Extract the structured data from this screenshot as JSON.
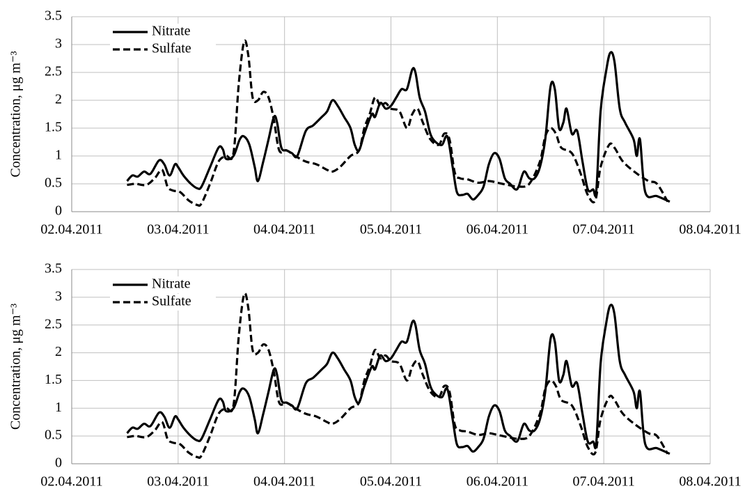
{
  "chart_data": [
    {
      "type": "line",
      "ylabel": "Concentration, μg m⁻³",
      "xlim": [
        0,
        6
      ],
      "xticks": [
        {
          "value": 0,
          "label": "02.04.2011"
        },
        {
          "value": 1,
          "label": "03.04.2011"
        },
        {
          "value": 2,
          "label": "04.04.2011"
        },
        {
          "value": 3,
          "label": "05.04.2011"
        },
        {
          "value": 4,
          "label": "06.04.2011"
        },
        {
          "value": 5,
          "label": "07.04.2011"
        },
        {
          "value": 6,
          "label": "08.04.2011"
        }
      ],
      "ylim": [
        0,
        3.5
      ],
      "yticks": [
        0,
        0.5,
        1,
        1.5,
        2,
        2.5,
        3,
        3.5
      ],
      "grid": true,
      "legend": "upper left",
      "series": [
        {
          "name": "Nitrate",
          "color": "#000000",
          "dash": false,
          "x": [
            0.52,
            0.57,
            0.62,
            0.68,
            0.74,
            0.82,
            0.87,
            0.92,
            0.97,
            1.0,
            1.05,
            1.12,
            1.18,
            1.22,
            1.3,
            1.38,
            1.42,
            1.45,
            1.52,
            1.58,
            1.62,
            1.67,
            1.72,
            1.75,
            1.8,
            1.85,
            1.9,
            1.93,
            1.97,
            2.02,
            2.07,
            2.12,
            2.2,
            2.27,
            2.35,
            2.4,
            2.45,
            2.5,
            2.56,
            2.62,
            2.66,
            2.7,
            2.75,
            2.82,
            2.85,
            2.9,
            2.95,
            3.0,
            3.05,
            3.1,
            3.15,
            3.2,
            3.23,
            3.27,
            3.32,
            3.37,
            3.42,
            3.48,
            3.53,
            3.58,
            3.62,
            3.67,
            3.72,
            3.77,
            3.82,
            3.87,
            3.92,
            3.97,
            4.02,
            4.07,
            4.12,
            4.17,
            4.2,
            4.25,
            4.3,
            4.35,
            4.4,
            4.45,
            4.5,
            4.54,
            4.58,
            4.62,
            4.65,
            4.7,
            4.75,
            4.8,
            4.85,
            4.9,
            4.93,
            4.97,
            5.02,
            5.06,
            5.1,
            5.15,
            5.2,
            5.28,
            5.31,
            5.34,
            5.39,
            5.5,
            5.62
          ],
          "values": [
            0.55,
            0.65,
            0.63,
            0.72,
            0.68,
            0.92,
            0.85,
            0.65,
            0.85,
            0.8,
            0.65,
            0.5,
            0.42,
            0.45,
            0.8,
            1.15,
            1.12,
            0.95,
            1.0,
            1.3,
            1.35,
            1.2,
            0.8,
            0.55,
            0.9,
            1.3,
            1.7,
            1.6,
            1.15,
            1.1,
            1.05,
            1.0,
            1.45,
            1.55,
            1.7,
            1.8,
            2.0,
            1.9,
            1.7,
            1.5,
            1.2,
            1.1,
            1.4,
            1.75,
            1.7,
            1.95,
            1.85,
            1.9,
            2.05,
            2.2,
            2.2,
            2.55,
            2.5,
            2.05,
            1.8,
            1.4,
            1.25,
            1.2,
            1.35,
            0.8,
            0.35,
            0.3,
            0.32,
            0.22,
            0.3,
            0.45,
            0.85,
            1.05,
            0.95,
            0.6,
            0.5,
            0.4,
            0.45,
            0.72,
            0.6,
            0.6,
            0.8,
            1.3,
            2.25,
            2.2,
            1.5,
            1.6,
            1.85,
            1.4,
            1.45,
            0.9,
            0.4,
            0.4,
            0.38,
            1.8,
            2.5,
            2.85,
            2.7,
            1.85,
            1.6,
            1.3,
            1.0,
            1.3,
            0.35,
            0.28,
            0.18
          ]
        },
        {
          "name": "Sulfate",
          "color": "#000000",
          "dash": true,
          "x": [
            0.52,
            0.6,
            0.7,
            0.78,
            0.85,
            0.9,
            0.95,
            1.02,
            1.1,
            1.18,
            1.22,
            1.3,
            1.38,
            1.45,
            1.52,
            1.57,
            1.62,
            1.66,
            1.7,
            1.75,
            1.8,
            1.85,
            1.9,
            1.95,
            2.02,
            2.1,
            2.2,
            2.3,
            2.4,
            2.45,
            2.52,
            2.62,
            2.7,
            2.75,
            2.8,
            2.85,
            2.9,
            2.95,
            3.0,
            3.08,
            3.15,
            3.2,
            3.25,
            3.3,
            3.37,
            3.45,
            3.5,
            3.55,
            3.6,
            3.65,
            3.72,
            3.82,
            3.92,
            4.0,
            4.1,
            4.2,
            4.3,
            4.4,
            4.45,
            4.5,
            4.55,
            4.6,
            4.7,
            4.78,
            4.85,
            4.92,
            4.97,
            5.05,
            5.1,
            5.18,
            5.3,
            5.42,
            5.5,
            5.6
          ],
          "values": [
            0.48,
            0.5,
            0.48,
            0.6,
            0.75,
            0.45,
            0.38,
            0.35,
            0.2,
            0.12,
            0.15,
            0.5,
            0.9,
            1.0,
            1.05,
            2.3,
            3.05,
            2.8,
            2.05,
            2.0,
            2.15,
            2.05,
            1.65,
            1.1,
            1.1,
            1.0,
            0.9,
            0.85,
            0.75,
            0.72,
            0.8,
            1.0,
            1.1,
            1.5,
            1.75,
            2.05,
            1.9,
            1.95,
            1.85,
            1.8,
            1.5,
            1.75,
            1.85,
            1.6,
            1.3,
            1.2,
            1.4,
            1.3,
            0.7,
            0.6,
            0.58,
            0.52,
            0.55,
            0.52,
            0.48,
            0.45,
            0.5,
            0.9,
            1.35,
            1.5,
            1.4,
            1.15,
            1.05,
            0.7,
            0.3,
            0.2,
            0.8,
            1.2,
            1.15,
            0.9,
            0.7,
            0.55,
            0.5,
            0.18
          ]
        }
      ]
    },
    {
      "type": "line",
      "ylabel": "Concentration, μg m⁻³",
      "xlim": [
        0,
        6
      ],
      "xticks": [
        {
          "value": 0,
          "label": "02.04.2011"
        },
        {
          "value": 1,
          "label": "03.04.2011"
        },
        {
          "value": 2,
          "label": "04.04.2011"
        },
        {
          "value": 3,
          "label": "05.04.2011"
        },
        {
          "value": 4,
          "label": "06.04.2011"
        },
        {
          "value": 5,
          "label": "07.04.2011"
        },
        {
          "value": 6,
          "label": "08.04.2011"
        }
      ],
      "ylim": [
        0,
        3.5
      ],
      "yticks": [
        0,
        0.5,
        1,
        1.5,
        2,
        2.5,
        3,
        3.5
      ],
      "grid": true,
      "legend": "upper left",
      "series": [
        {
          "name": "Nitrate",
          "color": "#000000",
          "dash": false,
          "x": [
            0.52,
            0.57,
            0.62,
            0.68,
            0.74,
            0.82,
            0.87,
            0.92,
            0.97,
            1.0,
            1.05,
            1.12,
            1.18,
            1.22,
            1.3,
            1.38,
            1.42,
            1.45,
            1.52,
            1.58,
            1.62,
            1.67,
            1.72,
            1.75,
            1.8,
            1.85,
            1.9,
            1.93,
            1.97,
            2.02,
            2.07,
            2.12,
            2.2,
            2.27,
            2.35,
            2.4,
            2.45,
            2.5,
            2.56,
            2.62,
            2.66,
            2.7,
            2.75,
            2.82,
            2.85,
            2.9,
            2.95,
            3.0,
            3.05,
            3.1,
            3.15,
            3.2,
            3.23,
            3.27,
            3.32,
            3.37,
            3.42,
            3.48,
            3.53,
            3.58,
            3.62,
            3.67,
            3.72,
            3.77,
            3.82,
            3.87,
            3.92,
            3.97,
            4.02,
            4.07,
            4.12,
            4.17,
            4.2,
            4.25,
            4.3,
            4.35,
            4.4,
            4.45,
            4.5,
            4.54,
            4.58,
            4.62,
            4.65,
            4.7,
            4.75,
            4.8,
            4.85,
            4.9,
            4.93,
            4.97,
            5.02,
            5.06,
            5.1,
            5.15,
            5.2,
            5.28,
            5.31,
            5.34,
            5.39,
            5.5,
            5.62
          ],
          "values": [
            0.55,
            0.65,
            0.63,
            0.72,
            0.68,
            0.92,
            0.85,
            0.65,
            0.85,
            0.8,
            0.65,
            0.5,
            0.42,
            0.45,
            0.8,
            1.15,
            1.12,
            0.95,
            1.0,
            1.3,
            1.35,
            1.2,
            0.8,
            0.55,
            0.9,
            1.3,
            1.7,
            1.6,
            1.15,
            1.1,
            1.05,
            1.0,
            1.45,
            1.55,
            1.7,
            1.8,
            2.0,
            1.9,
            1.7,
            1.5,
            1.2,
            1.1,
            1.4,
            1.75,
            1.7,
            1.95,
            1.85,
            1.9,
            2.05,
            2.2,
            2.2,
            2.55,
            2.5,
            2.05,
            1.8,
            1.4,
            1.25,
            1.2,
            1.35,
            0.8,
            0.35,
            0.3,
            0.32,
            0.22,
            0.3,
            0.45,
            0.85,
            1.05,
            0.95,
            0.6,
            0.5,
            0.4,
            0.45,
            0.72,
            0.6,
            0.6,
            0.8,
            1.3,
            2.25,
            2.2,
            1.5,
            1.6,
            1.85,
            1.4,
            1.45,
            0.9,
            0.4,
            0.4,
            0.38,
            1.8,
            2.5,
            2.85,
            2.7,
            1.85,
            1.6,
            1.3,
            1.0,
            1.3,
            0.35,
            0.28,
            0.18
          ]
        },
        {
          "name": "Sulfate",
          "color": "#000000",
          "dash": true,
          "x": [
            0.52,
            0.6,
            0.7,
            0.78,
            0.85,
            0.9,
            0.95,
            1.02,
            1.1,
            1.18,
            1.22,
            1.3,
            1.38,
            1.45,
            1.52,
            1.57,
            1.62,
            1.66,
            1.7,
            1.75,
            1.8,
            1.85,
            1.9,
            1.95,
            2.02,
            2.1,
            2.2,
            2.3,
            2.4,
            2.45,
            2.52,
            2.62,
            2.7,
            2.75,
            2.8,
            2.85,
            2.9,
            2.95,
            3.0,
            3.08,
            3.15,
            3.2,
            3.25,
            3.3,
            3.37,
            3.45,
            3.5,
            3.55,
            3.6,
            3.65,
            3.72,
            3.82,
            3.92,
            4.0,
            4.1,
            4.2,
            4.3,
            4.4,
            4.45,
            4.5,
            4.55,
            4.6,
            4.7,
            4.78,
            4.85,
            4.92,
            4.97,
            5.05,
            5.1,
            5.18,
            5.3,
            5.42,
            5.5,
            5.6
          ],
          "values": [
            0.48,
            0.5,
            0.48,
            0.6,
            0.75,
            0.45,
            0.38,
            0.35,
            0.2,
            0.12,
            0.15,
            0.5,
            0.9,
            1.0,
            1.05,
            2.3,
            3.05,
            2.8,
            2.05,
            2.0,
            2.15,
            2.05,
            1.65,
            1.1,
            1.1,
            1.0,
            0.9,
            0.85,
            0.75,
            0.72,
            0.8,
            1.0,
            1.1,
            1.5,
            1.75,
            2.05,
            1.9,
            1.95,
            1.85,
            1.8,
            1.5,
            1.75,
            1.85,
            1.6,
            1.3,
            1.2,
            1.4,
            1.3,
            0.7,
            0.6,
            0.58,
            0.52,
            0.55,
            0.52,
            0.48,
            0.45,
            0.5,
            0.9,
            1.35,
            1.5,
            1.4,
            1.15,
            1.05,
            0.7,
            0.3,
            0.2,
            0.8,
            1.2,
            1.15,
            0.9,
            0.7,
            0.55,
            0.5,
            0.18
          ]
        }
      ]
    }
  ]
}
